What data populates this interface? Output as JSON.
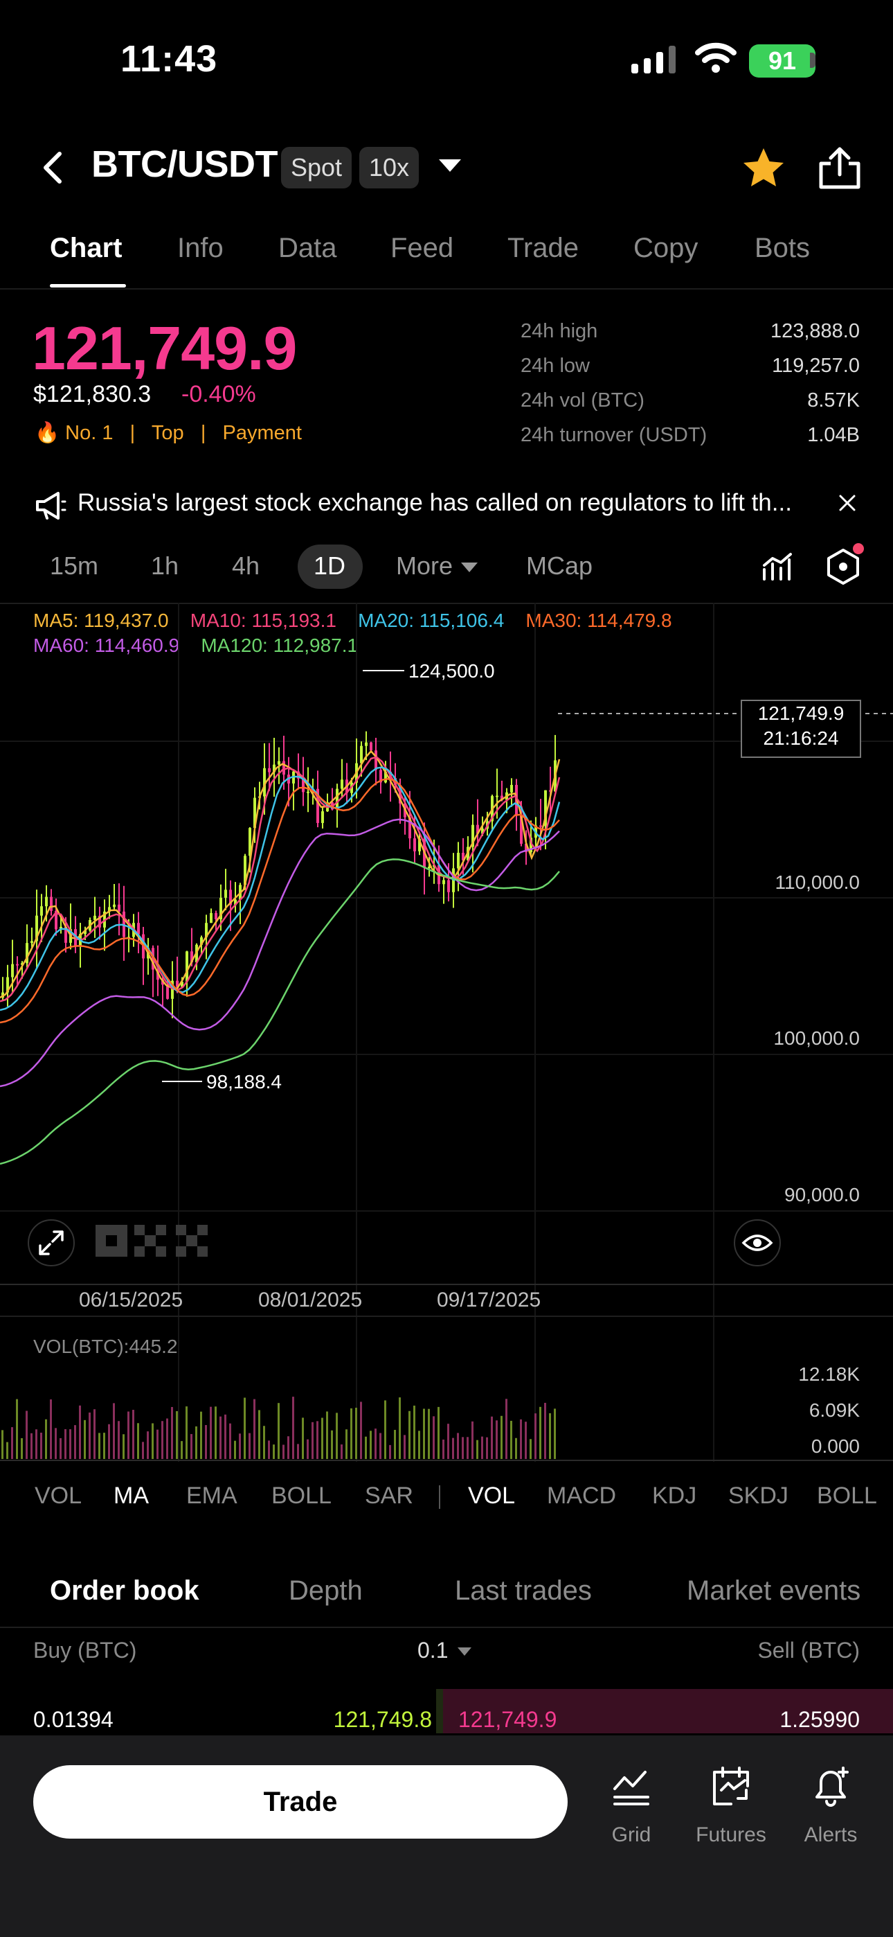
{
  "status_bar": {
    "time": "11:43",
    "battery": "91"
  },
  "header": {
    "pair": "BTC/USDT",
    "market_type": "Spot",
    "leverage": "10x"
  },
  "tabs": [
    {
      "label": "Chart",
      "active": true
    },
    {
      "label": "Info"
    },
    {
      "label": "Data"
    },
    {
      "label": "Feed"
    },
    {
      "label": "Trade"
    },
    {
      "label": "Copy"
    },
    {
      "label": "Bots"
    }
  ],
  "price": {
    "last": "121,749.9",
    "usd": "$121,830.3",
    "change": "-0.40%",
    "tags": {
      "rank": "No. 1",
      "top": "Top",
      "payment": "Payment"
    }
  },
  "stats": [
    {
      "label": "24h high",
      "value": "123,888.0"
    },
    {
      "label": "24h low",
      "value": "119,257.0"
    },
    {
      "label": "24h vol (BTC)",
      "value": "8.57K"
    },
    {
      "label": "24h turnover (USDT)",
      "value": "1.04B"
    }
  ],
  "news": {
    "text": "Russia's largest stock exchange has called on regulators to lift th..."
  },
  "timeframes": {
    "t15m": "15m",
    "t1h": "1h",
    "t4h": "4h",
    "t1d": "1D",
    "more": "More",
    "mcap": "MCap"
  },
  "moving_averages": {
    "ma5": "MA5: 119,437.0",
    "ma10": "MA10: 115,193.1",
    "ma20": "MA20: 115,106.4",
    "ma30": "MA30: 114,479.8",
    "ma60": "MA60: 114,460.9",
    "ma120": "MA120: 112,987.1"
  },
  "colors": {
    "ma5": "#f8b93a",
    "ma10": "#f5457b",
    "ma20": "#3fc4e8",
    "ma30": "#ff6a2a",
    "ma60": "#c35ce6",
    "ma120": "#6cd46c",
    "up": "#c3f53c",
    "down": "#f53a8f"
  },
  "chart_data": {
    "type": "candlestick",
    "y_axis_labels": [
      "110,000.0",
      "100,000.0",
      "90,000.0"
    ],
    "x_axis_labels": [
      "06/15/2025",
      "08/01/2025",
      "09/17/2025"
    ],
    "high_marker": "124,500.0",
    "low_marker": "98,188.4",
    "current_price": "121,749.9",
    "current_time": "21:16:24",
    "volume_label": "VOL(BTC):445.2",
    "volume_axis": [
      "12.18K",
      "6.09K",
      "0.000"
    ]
  },
  "indicators": {
    "main": [
      "VOL",
      "MA",
      "EMA",
      "BOLL",
      "SAR"
    ],
    "sub": [
      "VOL",
      "MACD",
      "KDJ",
      "SKDJ",
      "BOLL"
    ]
  },
  "orderbook": {
    "tabs": [
      "Order book",
      "Depth",
      "Last trades",
      "Market events"
    ],
    "buy_label": "Buy (BTC)",
    "precision": "0.1",
    "sell_label": "Sell (BTC)",
    "rows": [
      {
        "bid_qty": "0.01394",
        "bid_price": "121,749.8",
        "ask_price": "121,749.9",
        "ask_qty": "1.25990"
      }
    ]
  },
  "bottom_bar": {
    "trade": "Trade",
    "grid": "Grid",
    "futures": "Futures",
    "alerts": "Alerts"
  }
}
